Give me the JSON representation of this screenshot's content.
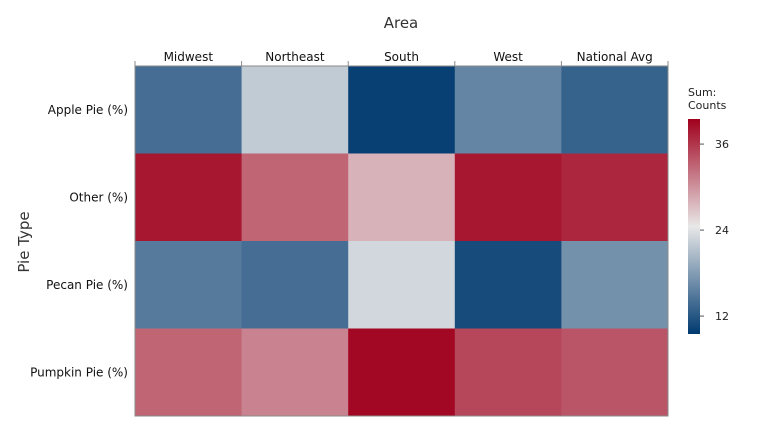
{
  "chart_data": {
    "type": "heatmap",
    "xlabel": "Area",
    "ylabel": "Pie Type",
    "columns": [
      "Midwest",
      "Northeast",
      "South",
      "West",
      "National Avg"
    ],
    "rows": [
      "Apple Pie (%)",
      "Other (%)",
      "Pecan Pie (%)",
      "Pumpkin Pie (%)"
    ],
    "values": [
      [
        14,
        22,
        10,
        16,
        13
      ],
      [
        38,
        33,
        28,
        38,
        37
      ],
      [
        15,
        14,
        23,
        11,
        17
      ],
      [
        33,
        31,
        39,
        35,
        34
      ]
    ],
    "legend": {
      "title_lines": [
        "Sum:",
        "Counts"
      ],
      "ticks": [
        12,
        24,
        36
      ],
      "min": 9.5,
      "max": 39.5,
      "position": "right"
    },
    "colors": {
      "low": "#003a70",
      "mid": "#e8e8e8",
      "high": "#a0001c"
    }
  }
}
